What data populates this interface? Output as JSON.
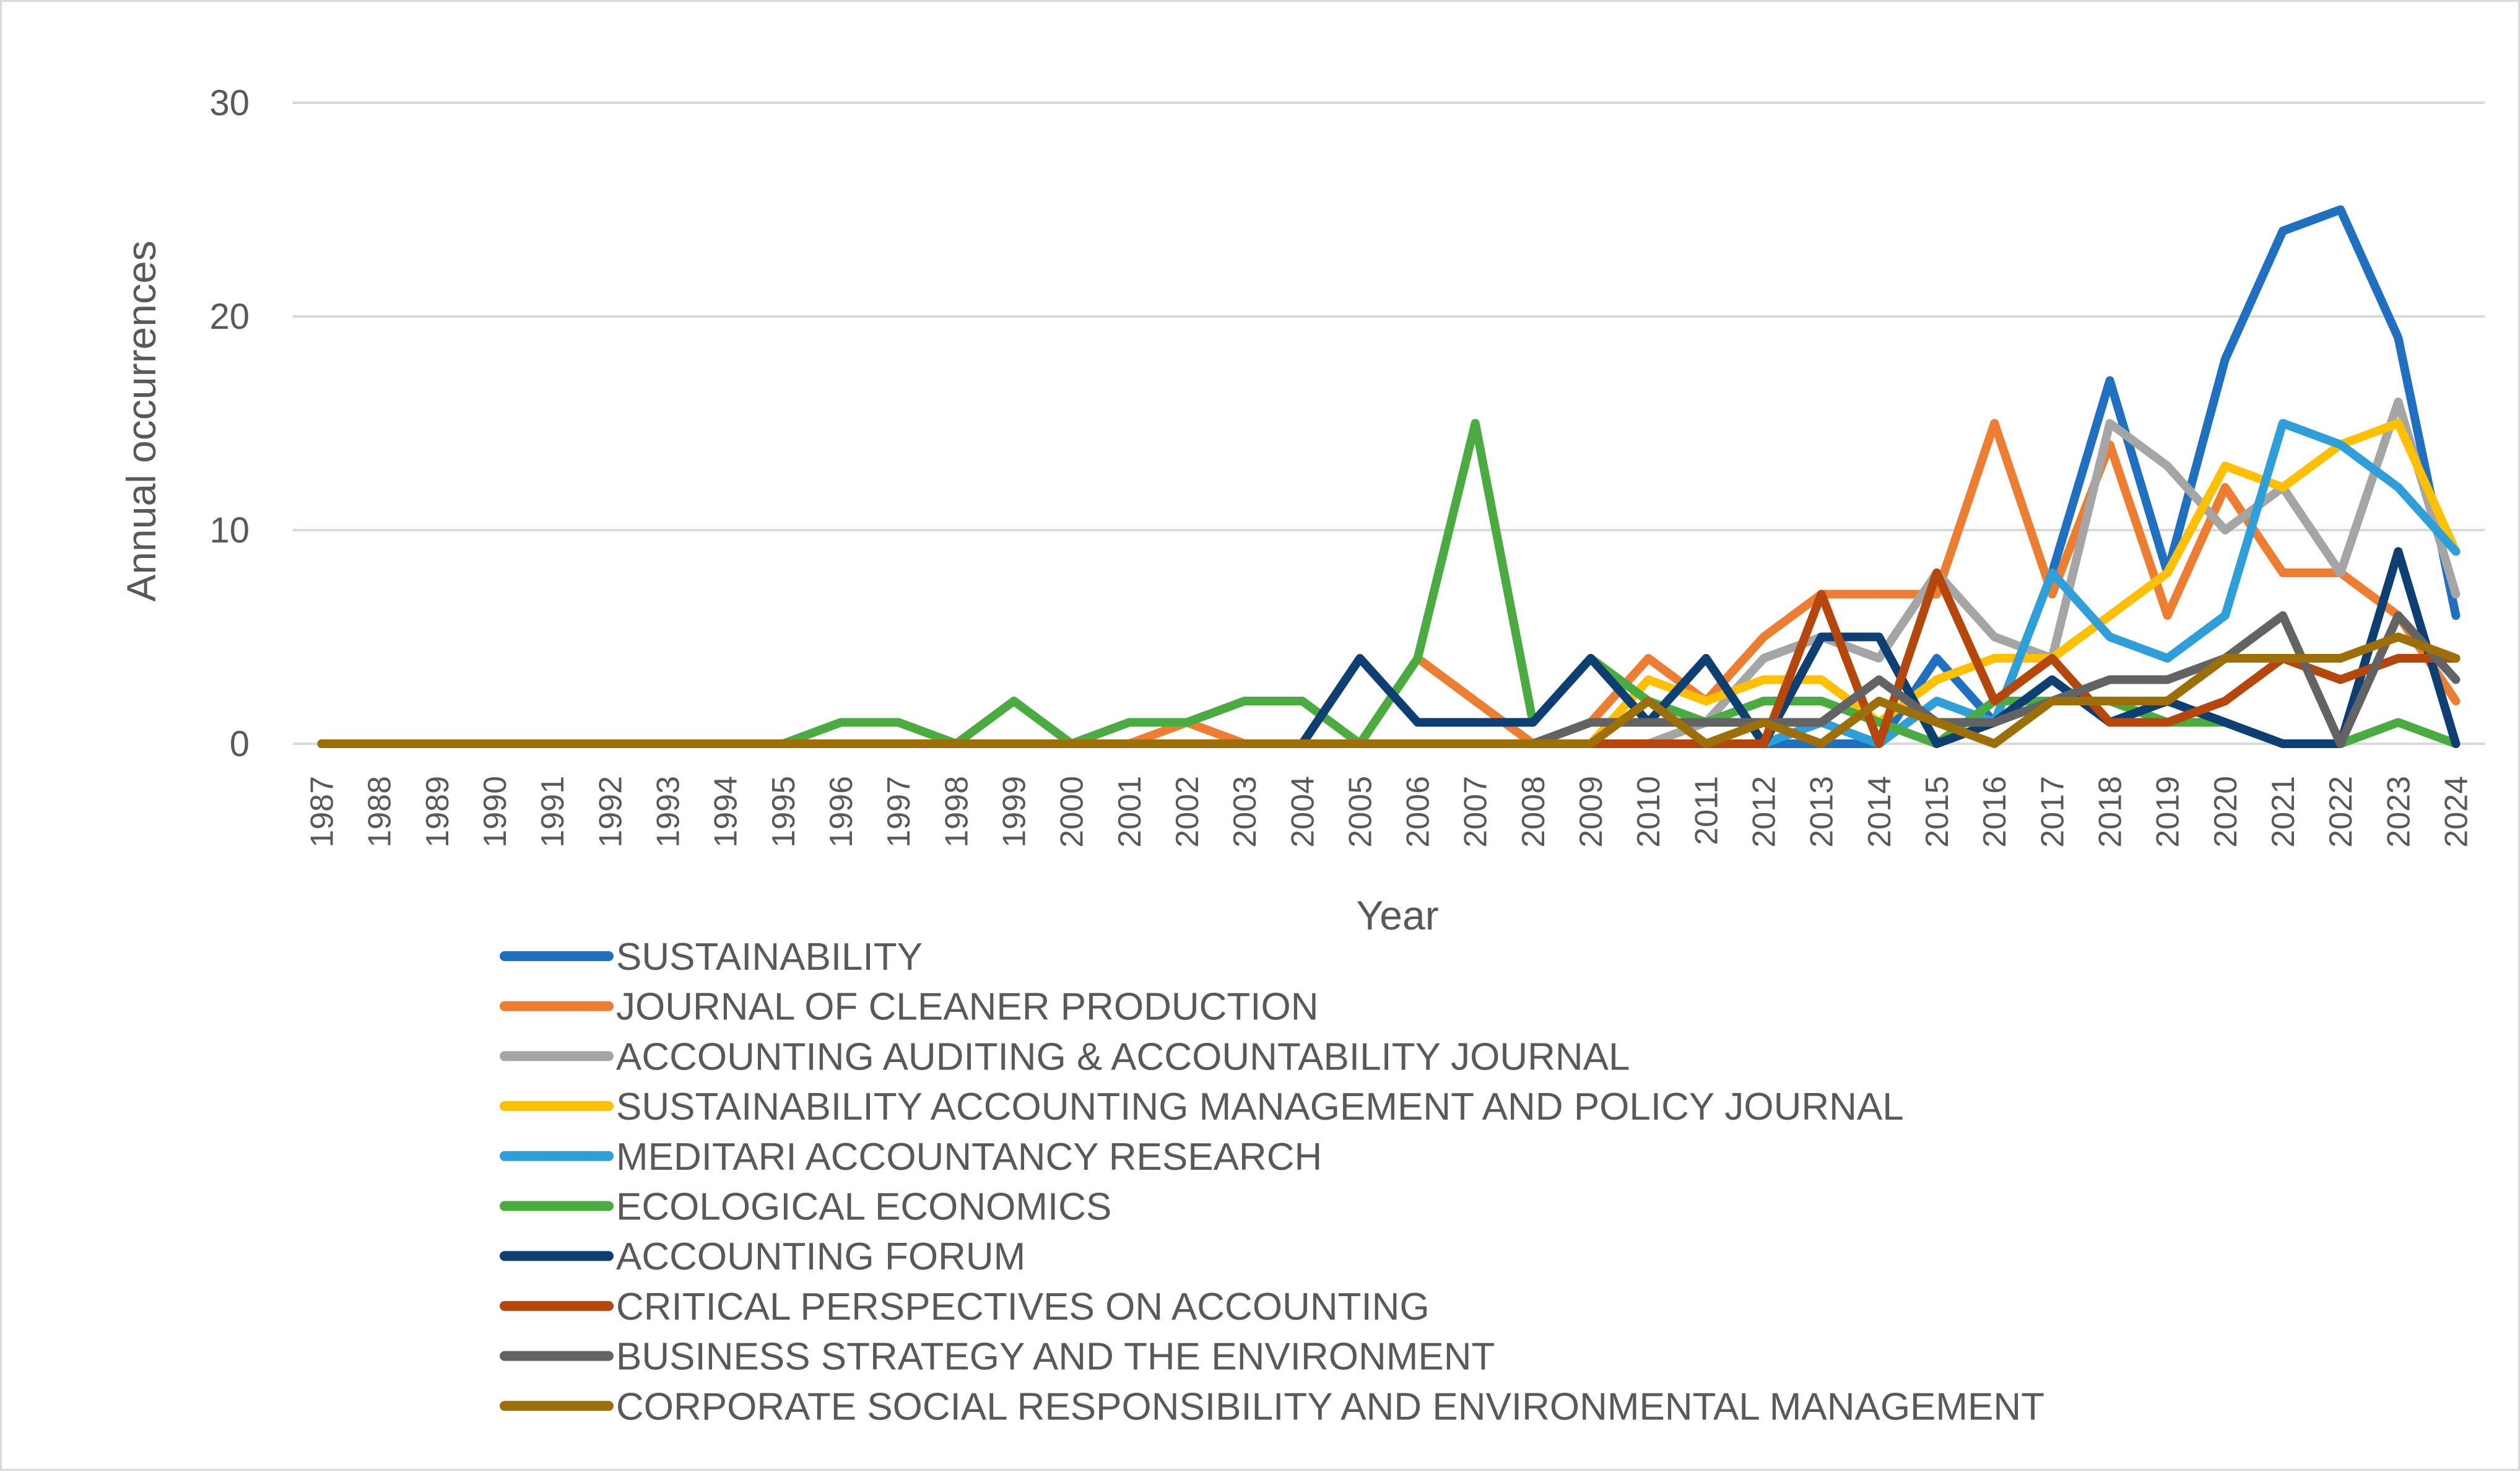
{
  "chart_data": {
    "type": "line",
    "title": "",
    "xlabel": "Year",
    "ylabel": "Annual occurrences",
    "ylim": [
      0,
      30
    ],
    "yticks": [
      "0",
      "10",
      "20",
      "30"
    ],
    "grid": "horizontal",
    "legend_position": "bottom",
    "categories": [
      "1987",
      "1988",
      "1989",
      "1990",
      "1991",
      "1992",
      "1993",
      "1994",
      "1995",
      "1996",
      "1997",
      "1998",
      "1999",
      "2000",
      "2001",
      "2002",
      "2003",
      "2004",
      "2005",
      "2006",
      "2007",
      "2008",
      "2009",
      "2010",
      "2011",
      "2012",
      "2013",
      "2014",
      "2015",
      "2016",
      "2017",
      "2018",
      "2019",
      "2020",
      "2021",
      "2022",
      "2023",
      "2024"
    ],
    "series": [
      {
        "name": "SUSTAINABILITY",
        "color": "#1f70c1",
        "values": [
          0,
          0,
          0,
          0,
          0,
          0,
          0,
          0,
          0,
          0,
          0,
          0,
          0,
          0,
          0,
          0,
          0,
          0,
          0,
          0,
          0,
          0,
          0,
          0,
          0,
          0,
          0,
          0,
          4,
          1,
          8,
          17,
          8,
          18,
          24,
          25,
          19,
          6
        ]
      },
      {
        "name": "JOURNAL OF CLEANER PRODUCTION",
        "color": "#ed7d31",
        "values": [
          0,
          0,
          0,
          0,
          0,
          0,
          0,
          0,
          0,
          0,
          0,
          0,
          0,
          0,
          0,
          1,
          0,
          0,
          0,
          4,
          2,
          0,
          1,
          4,
          2,
          5,
          7,
          7,
          7,
          15,
          7,
          14,
          6,
          12,
          8,
          8,
          6,
          2
        ]
      },
      {
        "name": "ACCOUNTING AUDITING & ACCOUNTABILITY JOURNAL",
        "color": "#a5a5a5",
        "values": [
          0,
          0,
          0,
          0,
          0,
          0,
          0,
          0,
          0,
          0,
          0,
          0,
          0,
          0,
          0,
          0,
          0,
          0,
          0,
          0,
          0,
          0,
          0,
          0,
          1,
          4,
          5,
          4,
          8,
          5,
          4,
          15,
          13,
          10,
          12,
          8,
          16,
          7
        ]
      },
      {
        "name": "SUSTAINABILITY ACCOUNTING MANAGEMENT AND POLICY JOURNAL",
        "color": "#ffc000",
        "values": [
          0,
          0,
          0,
          0,
          0,
          0,
          0,
          0,
          0,
          0,
          0,
          0,
          0,
          0,
          0,
          0,
          0,
          0,
          0,
          0,
          0,
          0,
          0,
          3,
          2,
          3,
          3,
          1,
          3,
          4,
          4,
          6,
          8,
          13,
          12,
          14,
          15,
          9
        ]
      },
      {
        "name": "MEDITARI ACCOUNTANCY RESEARCH",
        "color": "#2e9fd9",
        "values": [
          0,
          0,
          0,
          0,
          0,
          0,
          0,
          0,
          0,
          0,
          0,
          0,
          0,
          0,
          0,
          0,
          0,
          0,
          0,
          0,
          0,
          0,
          0,
          0,
          0,
          0,
          1,
          0,
          2,
          1,
          8,
          5,
          4,
          6,
          15,
          14,
          12,
          9
        ]
      },
      {
        "name": "ECOLOGICAL ECONOMICS",
        "color": "#4aac40",
        "values": [
          0,
          0,
          0,
          0,
          0,
          0,
          0,
          0,
          0,
          1,
          1,
          0,
          2,
          0,
          1,
          1,
          2,
          2,
          0,
          4,
          15,
          1,
          4,
          2,
          1,
          2,
          2,
          1,
          0,
          2,
          2,
          2,
          1,
          1,
          0,
          0,
          1,
          0
        ]
      },
      {
        "name": "ACCOUNTING FORUM",
        "color": "#0d3f73",
        "values": [
          0,
          0,
          0,
          0,
          0,
          0,
          0,
          0,
          0,
          0,
          0,
          0,
          0,
          0,
          0,
          0,
          0,
          0,
          4,
          1,
          1,
          1,
          4,
          1,
          4,
          0,
          5,
          5,
          0,
          1,
          3,
          1,
          2,
          1,
          0,
          0,
          9,
          0
        ]
      },
      {
        "name": "CRITICAL PERSPECTIVES ON ACCOUNTING",
        "color": "#b5470d",
        "values": [
          0,
          0,
          0,
          0,
          0,
          0,
          0,
          0,
          0,
          0,
          0,
          0,
          0,
          0,
          0,
          0,
          0,
          0,
          0,
          0,
          0,
          0,
          0,
          0,
          0,
          0,
          7,
          0,
          8,
          2,
          4,
          1,
          1,
          2,
          4,
          3,
          4,
          4
        ]
      },
      {
        "name": "BUSINESS STRATEGY AND THE ENVIRONMENT",
        "color": "#636363",
        "values": [
          0,
          0,
          0,
          0,
          0,
          0,
          0,
          0,
          0,
          0,
          0,
          0,
          0,
          0,
          0,
          0,
          0,
          0,
          0,
          0,
          0,
          0,
          1,
          1,
          1,
          1,
          1,
          3,
          1,
          1,
          2,
          3,
          3,
          4,
          6,
          0,
          6,
          3
        ]
      },
      {
        "name": "CORPORATE SOCIAL RESPONSIBILITY AND ENVIRONMENTAL MANAGEMENT",
        "color": "#9c6f08",
        "values": [
          0,
          0,
          0,
          0,
          0,
          0,
          0,
          0,
          0,
          0,
          0,
          0,
          0,
          0,
          0,
          0,
          0,
          0,
          0,
          0,
          0,
          0,
          0,
          2,
          0,
          1,
          0,
          2,
          1,
          0,
          2,
          2,
          2,
          4,
          4,
          4,
          5,
          4
        ]
      }
    ]
  }
}
